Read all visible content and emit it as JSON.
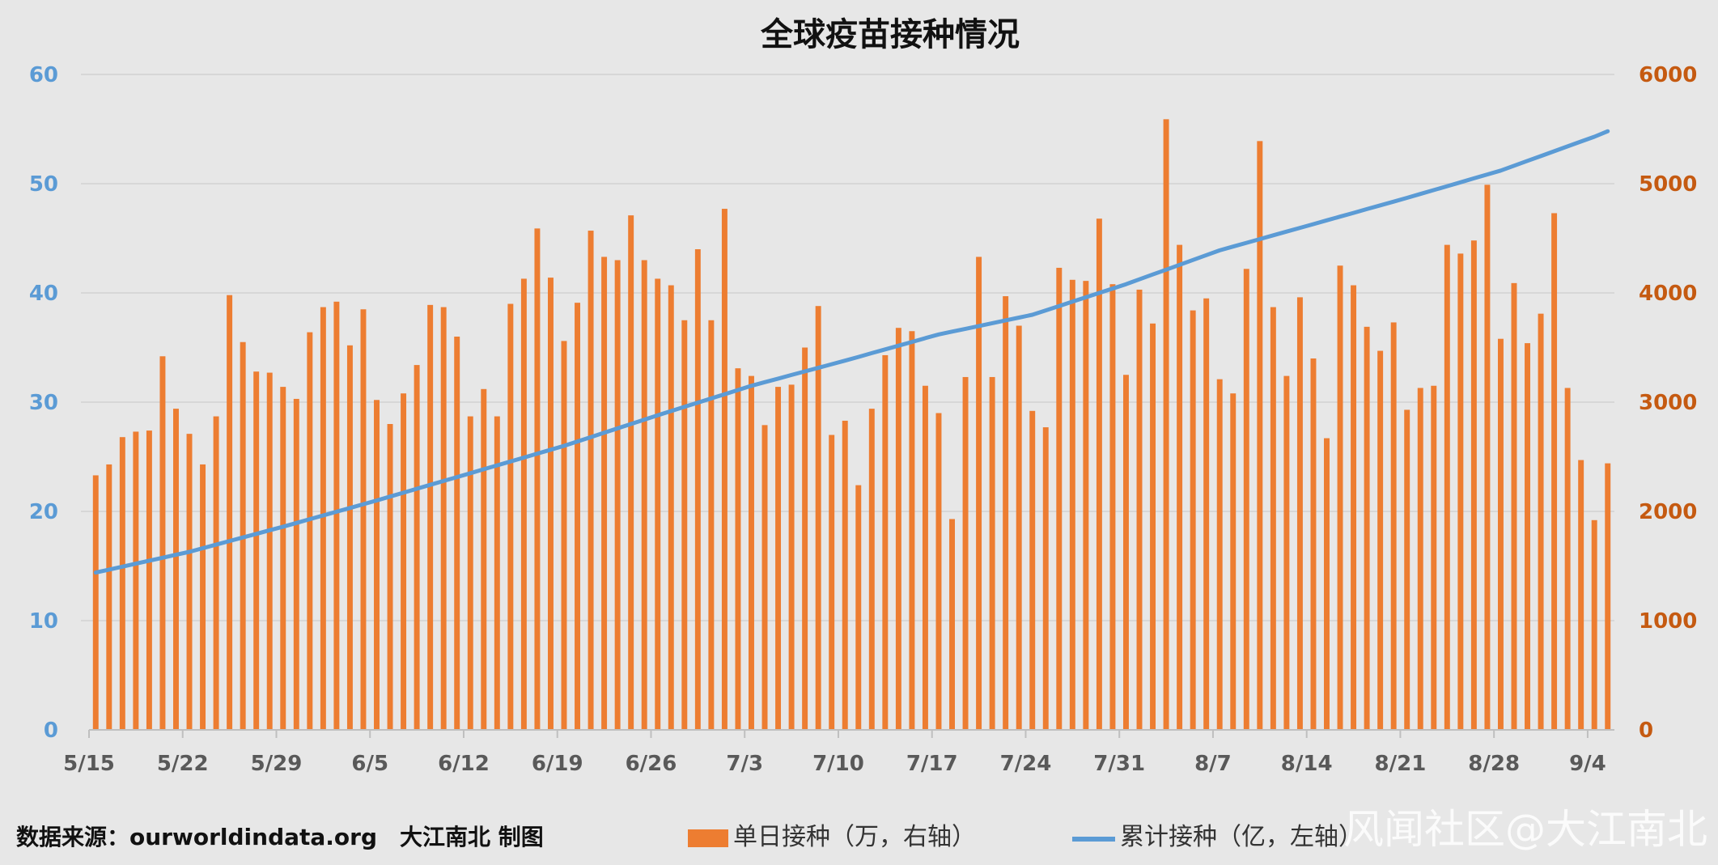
{
  "chart_data": {
    "type": "bar+line",
    "title": "全球疫苗接种情况",
    "x_start": "5/15",
    "x_ticks": [
      "5/15",
      "5/22",
      "5/29",
      "6/5",
      "6/12",
      "6/19",
      "6/26",
      "7/3",
      "7/10",
      "7/17",
      "7/24",
      "7/31",
      "8/7",
      "8/14",
      "8/21",
      "8/28",
      "9/4"
    ],
    "y_left": {
      "ticks": [
        "0",
        "10",
        "20",
        "30",
        "40",
        "50",
        "60"
      ],
      "ylim": [
        0,
        60
      ]
    },
    "y_right": {
      "ticks": [
        "0",
        "1000",
        "2000",
        "3000",
        "4000",
        "5000",
        "6000"
      ],
      "ylim": [
        0,
        6000
      ]
    },
    "legend_position": "bottom",
    "grid": true,
    "series": [
      {
        "name": "单日接种（万，右轴）",
        "kind": "bar",
        "axis": "right",
        "color": "#ed7d31",
        "values": [
          2330,
          2430,
          2680,
          2730,
          2740,
          3420,
          2940,
          2710,
          2430,
          2870,
          3980,
          3550,
          3280,
          3270,
          3140,
          3030,
          3640,
          3870,
          3920,
          3520,
          3850,
          3020,
          2800,
          3080,
          3340,
          3890,
          3870,
          3600,
          2870,
          3120,
          2870,
          3900,
          4130,
          4590,
          4140,
          3560,
          3910,
          4570,
          4330,
          4300,
          4710,
          4300,
          4130,
          4070,
          3750,
          4400,
          3750,
          4770,
          3310,
          3240,
          2790,
          3140,
          3160,
          3500,
          3880,
          2700,
          2830,
          2240,
          2940,
          3430,
          3680,
          3650,
          3150,
          2900,
          1930,
          3230,
          4330,
          3230,
          3970,
          3700,
          2920,
          2770,
          4230,
          4120,
          4110,
          4680,
          4080,
          3250,
          4030,
          3720,
          5590,
          4440,
          3840,
          3950,
          3210,
          3080,
          4220,
          5390,
          3870,
          3240,
          3960,
          3400,
          2670,
          4250,
          4070,
          3690,
          3470,
          3730,
          2930,
          3130,
          3150,
          4440,
          4360,
          4480,
          4990,
          3580,
          4090,
          3540,
          3810,
          4730,
          3130,
          2470,
          1920,
          2440
        ]
      },
      {
        "name": "累计接种（亿，左轴）",
        "kind": "line",
        "axis": "left",
        "color": "#5b9bd5",
        "start": 14.4,
        "end": 54.8,
        "knots": [
          [
            0,
            14.4
          ],
          [
            7,
            16.3
          ],
          [
            14,
            18.6
          ],
          [
            21,
            21.0
          ],
          [
            28,
            23.5
          ],
          [
            35,
            26.0
          ],
          [
            42,
            28.8
          ],
          [
            49,
            31.5
          ],
          [
            56,
            33.8
          ],
          [
            63,
            36.2
          ],
          [
            70,
            38.0
          ],
          [
            77,
            40.8
          ],
          [
            84,
            43.9
          ],
          [
            91,
            46.3
          ],
          [
            98,
            48.7
          ],
          [
            105,
            51.2
          ],
          [
            112,
            54.3
          ],
          [
            113,
            54.8
          ]
        ]
      }
    ]
  },
  "legend": {
    "bar_label": "单日接种（万，右轴）",
    "line_label": "累计接种（亿，左轴）"
  },
  "footer": {
    "source": "数据来源：ourworldindata.org　大江南北 制图"
  },
  "watermark": "风闻社区@大江南北"
}
